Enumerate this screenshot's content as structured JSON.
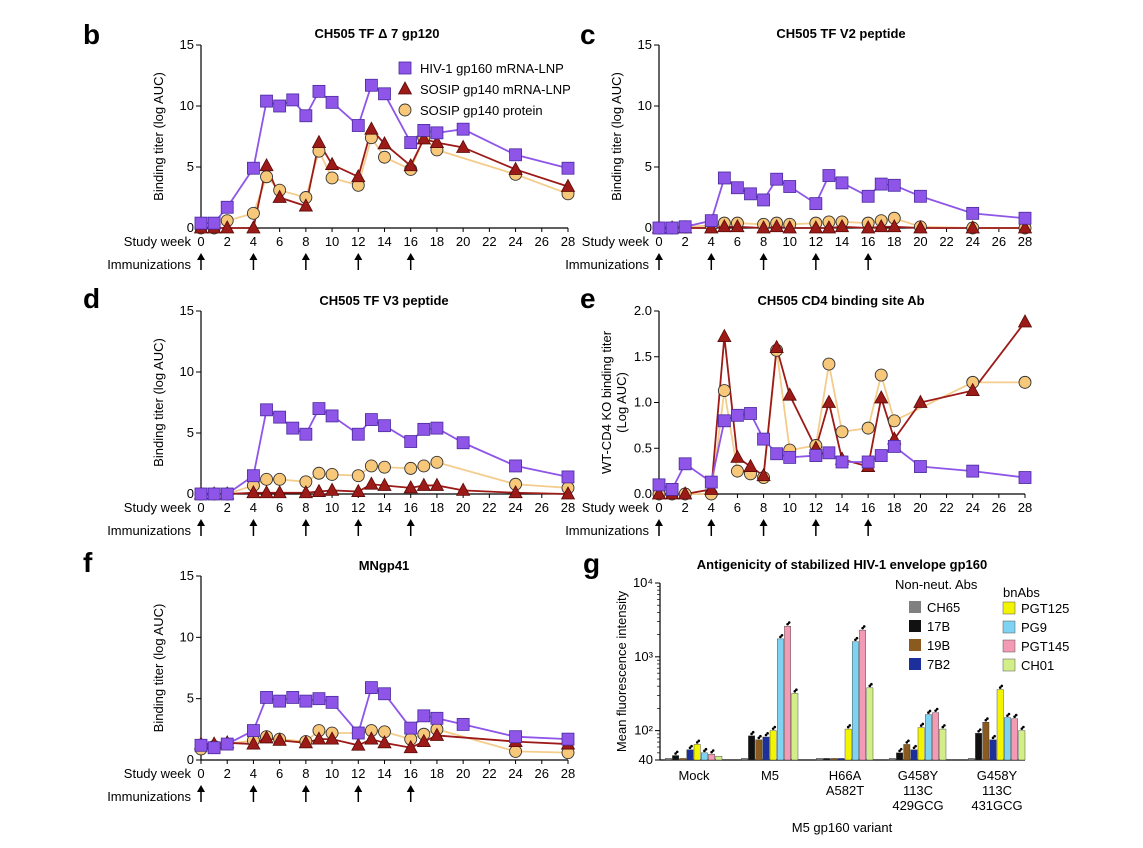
{
  "colors": {
    "purple": "#8E55E8",
    "maroon": "#9C1A17",
    "gold": "#F7C77A",
    "gold_line": "#F4CC8C",
    "axis": "#000000"
  },
  "common": {
    "study_week_label": "Study week",
    "immunizations_label": "Immunizations",
    "immunization_weeks": [
      0,
      4,
      8,
      12,
      16
    ],
    "week_ticks": [
      0,
      2,
      4,
      6,
      8,
      10,
      12,
      14,
      16,
      18,
      20,
      22,
      24,
      26,
      28
    ]
  },
  "legend": {
    "items": [
      {
        "label": "HIV-1 gp160 mRNA-LNP",
        "key": "purple",
        "marker": "square"
      },
      {
        "label": "SOSIP gp140 mRNA-LNP",
        "key": "maroon",
        "marker": "triangle"
      },
      {
        "label": "SOSIP gp140 protein",
        "key": "gold",
        "marker": "circle"
      }
    ]
  },
  "panel_g_legend": {
    "nonneut_title": "Non-neut. Abs",
    "bnabs_title": "bnAbs",
    "nonneut": [
      {
        "label": "CH65",
        "color": "#808080"
      },
      {
        "label": "17B",
        "color": "#111111"
      },
      {
        "label": "19B",
        "color": "#8B5A1E"
      },
      {
        "label": "7B2",
        "color": "#1C2F9A"
      }
    ],
    "bnabs": [
      {
        "label": "PGT125",
        "color": "#F3F400"
      },
      {
        "label": "PG9",
        "color": "#7FD3F2"
      },
      {
        "label": "PGT145",
        "color": "#F39AB5"
      },
      {
        "label": "CH01",
        "color": "#D2EE86"
      }
    ]
  },
  "chart_data": [
    {
      "panel": "b",
      "type": "line",
      "title": "CH505 TF Δ 7 gp120",
      "xlabel": "Study week",
      "ylabel": "Binding titer (log AUC)",
      "xlim": [
        0,
        28
      ],
      "ylim": [
        0,
        15
      ],
      "yticks": [
        0,
        5,
        10,
        15
      ],
      "series": [
        {
          "name": "HIV-1 gp160 mRNA-LNP",
          "x": [
            0,
            1,
            2,
            4,
            5,
            6,
            7,
            8,
            9,
            10,
            12,
            13,
            14,
            16,
            17,
            18,
            20,
            24,
            28
          ],
          "y": [
            0.4,
            0.4,
            1.7,
            4.9,
            10.4,
            10.0,
            10.5,
            9.2,
            11.2,
            10.3,
            8.4,
            11.7,
            11.0,
            7.0,
            8.0,
            7.8,
            8.1,
            6.0,
            4.9
          ]
        },
        {
          "name": "SOSIP gp140 mRNA-LNP",
          "x": [
            0,
            1,
            2,
            4,
            5,
            6,
            8,
            9,
            10,
            12,
            13,
            14,
            16,
            17,
            18,
            20,
            24,
            28
          ],
          "y": [
            0,
            0,
            0,
            0,
            5.1,
            2.5,
            1.8,
            7.0,
            5.2,
            4.2,
            8.1,
            6.9,
            5.1,
            7.3,
            7.0,
            6.6,
            4.8,
            3.4
          ]
        },
        {
          "name": "SOSIP gp140 protein",
          "x": [
            0,
            1,
            2,
            4,
            5,
            6,
            8,
            9,
            10,
            12,
            13,
            14,
            16,
            17,
            18,
            24,
            28
          ],
          "y": [
            0,
            0,
            0.6,
            1.2,
            4.2,
            3.1,
            2.5,
            6.3,
            4.1,
            3.5,
            7.4,
            5.8,
            4.8,
            7.4,
            6.4,
            4.4,
            2.8
          ]
        }
      ]
    },
    {
      "panel": "c",
      "type": "line",
      "title": "CH505 TF V2 peptide",
      "xlabel": "Study week",
      "ylabel": "Binding titer (log AUC)",
      "xlim": [
        0,
        28
      ],
      "ylim": [
        0,
        15
      ],
      "yticks": [
        0,
        5,
        10,
        15
      ],
      "series": [
        {
          "name": "HIV-1 gp160 mRNA-LNP",
          "x": [
            0,
            1,
            2,
            4,
            5,
            6,
            7,
            8,
            9,
            10,
            12,
            13,
            14,
            16,
            17,
            18,
            20,
            24,
            28
          ],
          "y": [
            0,
            0,
            0.1,
            0.6,
            4.1,
            3.3,
            2.8,
            2.3,
            4.0,
            3.4,
            2.0,
            4.3,
            3.7,
            2.6,
            3.6,
            3.5,
            2.6,
            1.2,
            0.8
          ]
        },
        {
          "name": "SOSIP gp140 mRNA-LNP",
          "x": [
            0,
            1,
            2,
            4,
            5,
            6,
            8,
            9,
            10,
            12,
            13,
            14,
            16,
            17,
            18,
            20,
            24,
            28
          ],
          "y": [
            0,
            0,
            0,
            0,
            0.1,
            0.1,
            0,
            0.1,
            0,
            0,
            0,
            0.1,
            0,
            0.1,
            0.1,
            0,
            0,
            0
          ]
        },
        {
          "name": "SOSIP gp140 protein",
          "x": [
            0,
            1,
            2,
            4,
            5,
            6,
            8,
            9,
            10,
            12,
            13,
            14,
            16,
            17,
            18,
            20,
            24,
            28
          ],
          "y": [
            0,
            0,
            0.1,
            0.2,
            0.4,
            0.4,
            0.3,
            0.4,
            0.3,
            0.4,
            0.5,
            0.5,
            0.4,
            0.6,
            0.8,
            0.1,
            0,
            0
          ]
        }
      ]
    },
    {
      "panel": "d",
      "type": "line",
      "title": "CH505 TF V3 peptide",
      "xlabel": "Study week",
      "ylabel": "Binding titer (log AUC)",
      "xlim": [
        0,
        28
      ],
      "ylim": [
        0,
        15
      ],
      "yticks": [
        0,
        5,
        10,
        15
      ],
      "series": [
        {
          "name": "HIV-1 gp160 mRNA-LNP",
          "x": [
            0,
            1,
            2,
            4,
            5,
            6,
            7,
            8,
            9,
            10,
            12,
            13,
            14,
            16,
            17,
            18,
            20,
            24,
            28
          ],
          "y": [
            0,
            0,
            0,
            1.5,
            6.9,
            6.3,
            5.4,
            4.9,
            7.0,
            6.4,
            4.9,
            6.1,
            5.6,
            4.3,
            5.3,
            5.4,
            4.2,
            2.3,
            1.4
          ]
        },
        {
          "name": "SOSIP gp140 mRNA-LNP",
          "x": [
            0,
            1,
            2,
            4,
            5,
            6,
            8,
            9,
            10,
            12,
            13,
            14,
            16,
            17,
            18,
            20,
            24,
            28
          ],
          "y": [
            0,
            0,
            0,
            0.1,
            0.1,
            0.1,
            0.1,
            0.2,
            0.3,
            0.2,
            0.8,
            0.7,
            0.5,
            0.7,
            0.7,
            0.3,
            0.1,
            0
          ]
        },
        {
          "name": "SOSIP gp140 protein",
          "x": [
            0,
            1,
            2,
            4,
            5,
            6,
            8,
            9,
            10,
            12,
            13,
            14,
            16,
            17,
            18,
            24,
            28
          ],
          "y": [
            0,
            0,
            0,
            0.7,
            1.2,
            1.2,
            1.0,
            1.7,
            1.6,
            1.5,
            2.3,
            2.2,
            2.1,
            2.3,
            2.6,
            0.8,
            0.5
          ]
        }
      ]
    },
    {
      "panel": "e",
      "type": "line",
      "title": "CH505 CD4 binding site Ab",
      "xlabel": "Study week",
      "ylabel": "WT-CD4 KO binding titer (Log AUC)",
      "xlim": [
        0,
        28
      ],
      "ylim": [
        0,
        2.0
      ],
      "yticks": [
        0.0,
        0.5,
        1.0,
        1.5,
        2.0
      ],
      "series": [
        {
          "name": "HIV-1 gp160 mRNA-LNP",
          "x": [
            0,
            1,
            2,
            4,
            5,
            6,
            7,
            8,
            9,
            10,
            12,
            13,
            14,
            16,
            17,
            18,
            20,
            24,
            28
          ],
          "y": [
            0.1,
            0.05,
            0.33,
            0.13,
            0.8,
            0.86,
            0.88,
            0.6,
            0.44,
            0.4,
            0.42,
            0.45,
            0.35,
            0.35,
            0.42,
            0.52,
            0.3,
            0.25,
            0.18
          ]
        },
        {
          "name": "SOSIP gp140 mRNA-LNP",
          "x": [
            0,
            1,
            2,
            4,
            5,
            6,
            7,
            8,
            9,
            10,
            12,
            13,
            14,
            16,
            17,
            18,
            20,
            24,
            28
          ],
          "y": [
            0,
            0,
            0,
            0.05,
            1.72,
            0.4,
            0.3,
            0.2,
            1.6,
            1.08,
            0.5,
            1.0,
            0.38,
            0.3,
            1.05,
            0.6,
            1.0,
            1.13,
            1.88
          ]
        },
        {
          "name": "SOSIP gp140 protein",
          "x": [
            0,
            1,
            2,
            4,
            5,
            6,
            7,
            8,
            9,
            10,
            12,
            13,
            14,
            16,
            17,
            18,
            24,
            28
          ],
          "y": [
            0,
            0,
            0,
            0,
            1.13,
            0.25,
            0.22,
            0.18,
            1.57,
            0.48,
            0.53,
            1.42,
            0.68,
            0.72,
            1.3,
            0.8,
            1.22,
            1.22
          ]
        }
      ]
    },
    {
      "panel": "f",
      "type": "line",
      "title": "MNgp41",
      "xlabel": "Study week",
      "ylabel": "Binding titer (log AUC)",
      "xlim": [
        0,
        28
      ],
      "ylim": [
        0,
        15
      ],
      "yticks": [
        0,
        5,
        10,
        15
      ],
      "series": [
        {
          "name": "HIV-1 gp160 mRNA-LNP",
          "x": [
            0,
            1,
            2,
            4,
            5,
            6,
            7,
            8,
            9,
            10,
            12,
            13,
            14,
            16,
            17,
            18,
            20,
            24,
            28
          ],
          "y": [
            1.2,
            1.0,
            1.3,
            2.4,
            5.1,
            4.8,
            5.1,
            4.8,
            5.0,
            4.7,
            2.2,
            5.9,
            5.4,
            2.6,
            3.6,
            3.4,
            2.9,
            1.9,
            1.7
          ]
        },
        {
          "name": "SOSIP gp140 mRNA-LNP",
          "x": [
            0,
            1,
            2,
            4,
            5,
            6,
            8,
            9,
            10,
            12,
            13,
            14,
            16,
            17,
            18,
            24,
            28
          ],
          "y": [
            1.3,
            1.3,
            1.4,
            1.3,
            1.8,
            1.6,
            1.4,
            1.7,
            1.7,
            1.2,
            1.7,
            1.4,
            1.0,
            1.5,
            2.0,
            1.5,
            1.3
          ]
        },
        {
          "name": "SOSIP gp140 protein",
          "x": [
            0,
            1,
            2,
            4,
            5,
            6,
            8,
            9,
            10,
            12,
            13,
            14,
            16,
            17,
            18,
            24,
            28
          ],
          "y": [
            0.9,
            1.1,
            1.3,
            1.6,
            1.9,
            1.7,
            1.5,
            2.4,
            2.2,
            2.2,
            2.4,
            2.3,
            1.7,
            2.1,
            2.5,
            0.7,
            0.6
          ]
        }
      ]
    },
    {
      "panel": "g",
      "type": "bar",
      "title": "Antigenicity of stabilized HIV-1 envelope gp160",
      "xlabel": "M5 gp160 variant",
      "ylabel": "Mean fluorescence intensity",
      "yscale": "log",
      "ylim": [
        40,
        10000
      ],
      "ytick_labels": [
        "40",
        "10²",
        "10³",
        "10⁴"
      ],
      "categories": [
        "Mock",
        "M5",
        "H66A A582T",
        "G458Y 113C 429GCG",
        "G458Y 113C 431GCG"
      ],
      "category_lines": [
        [
          "Mock"
        ],
        [
          "M5"
        ],
        [
          "H66A",
          "A582T"
        ],
        [
          "G458Y",
          "113C",
          "429GCG"
        ],
        [
          "G458Y",
          "113C",
          "431GCG"
        ]
      ],
      "series": [
        {
          "name": "CH65",
          "values": [
            42,
            42,
            42,
            42,
            42
          ]
        },
        {
          "name": "17B",
          "values": [
            46,
            85,
            42,
            50,
            92
          ]
        },
        {
          "name": "19B",
          "values": [
            42,
            75,
            42,
            65,
            130
          ]
        },
        {
          "name": "7B2",
          "values": [
            55,
            82,
            42,
            55,
            75
          ]
        },
        {
          "name": "PGT125",
          "values": [
            65,
            100,
            105,
            110,
            360
          ]
        },
        {
          "name": "PG9",
          "values": [
            50,
            1750,
            1600,
            165,
            150
          ]
        },
        {
          "name": "PGT145",
          "values": [
            48,
            2600,
            2300,
            175,
            145
          ]
        },
        {
          "name": "CH01",
          "values": [
            45,
            320,
            380,
            105,
            100
          ]
        }
      ]
    }
  ],
  "panels": [
    {
      "letter": "b"
    },
    {
      "letter": "c"
    },
    {
      "letter": "d"
    },
    {
      "letter": "e"
    },
    {
      "letter": "f"
    },
    {
      "letter": "g"
    }
  ]
}
